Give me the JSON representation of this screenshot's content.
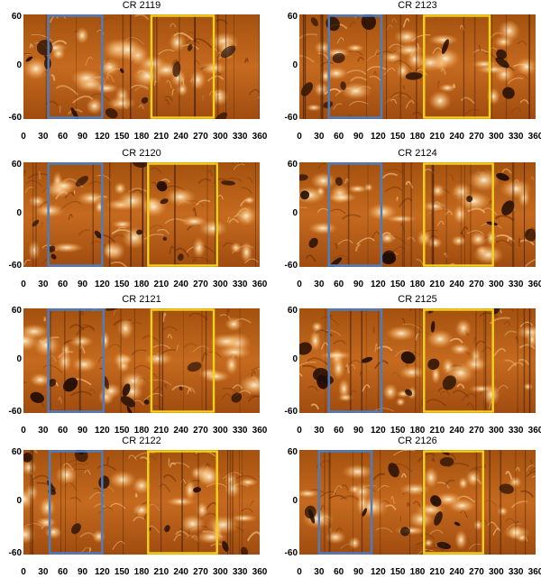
{
  "axes": {
    "y_ticks": [
      "60",
      "0",
      "-60"
    ],
    "x_ticks": [
      "0",
      "30",
      "60",
      "90",
      "120",
      "150",
      "180",
      "210",
      "240",
      "270",
      "300",
      "330",
      "360"
    ],
    "box_colors": {
      "blue": "#4a7ec4",
      "yellow": "#f2d21b"
    }
  },
  "panels": [
    {
      "title": "CR 2119",
      "seed": 11,
      "blue": [
        38,
        120
      ],
      "yellow": [
        195,
        290
      ]
    },
    {
      "title": "CR 2123",
      "seed": 23,
      "blue": [
        45,
        125
      ],
      "yellow": [
        190,
        290
      ]
    },
    {
      "title": "CR 2120",
      "seed": 37,
      "blue": [
        38,
        120
      ],
      "yellow": [
        190,
        295
      ]
    },
    {
      "title": "CR 2124",
      "seed": 41,
      "blue": [
        45,
        125
      ],
      "yellow": [
        190,
        295
      ]
    },
    {
      "title": "CR 2121",
      "seed": 53,
      "blue": [
        38,
        122
      ],
      "yellow": [
        195,
        290
      ]
    },
    {
      "title": "CR 2125",
      "seed": 67,
      "blue": [
        45,
        125
      ],
      "yellow": [
        190,
        295
      ]
    },
    {
      "title": "CR 2122",
      "seed": 71,
      "blue": [
        40,
        120
      ],
      "yellow": [
        190,
        295
      ]
    },
    {
      "title": "CR 2126",
      "seed": 83,
      "blue": [
        30,
        110
      ],
      "yellow": [
        190,
        280
      ]
    }
  ]
}
